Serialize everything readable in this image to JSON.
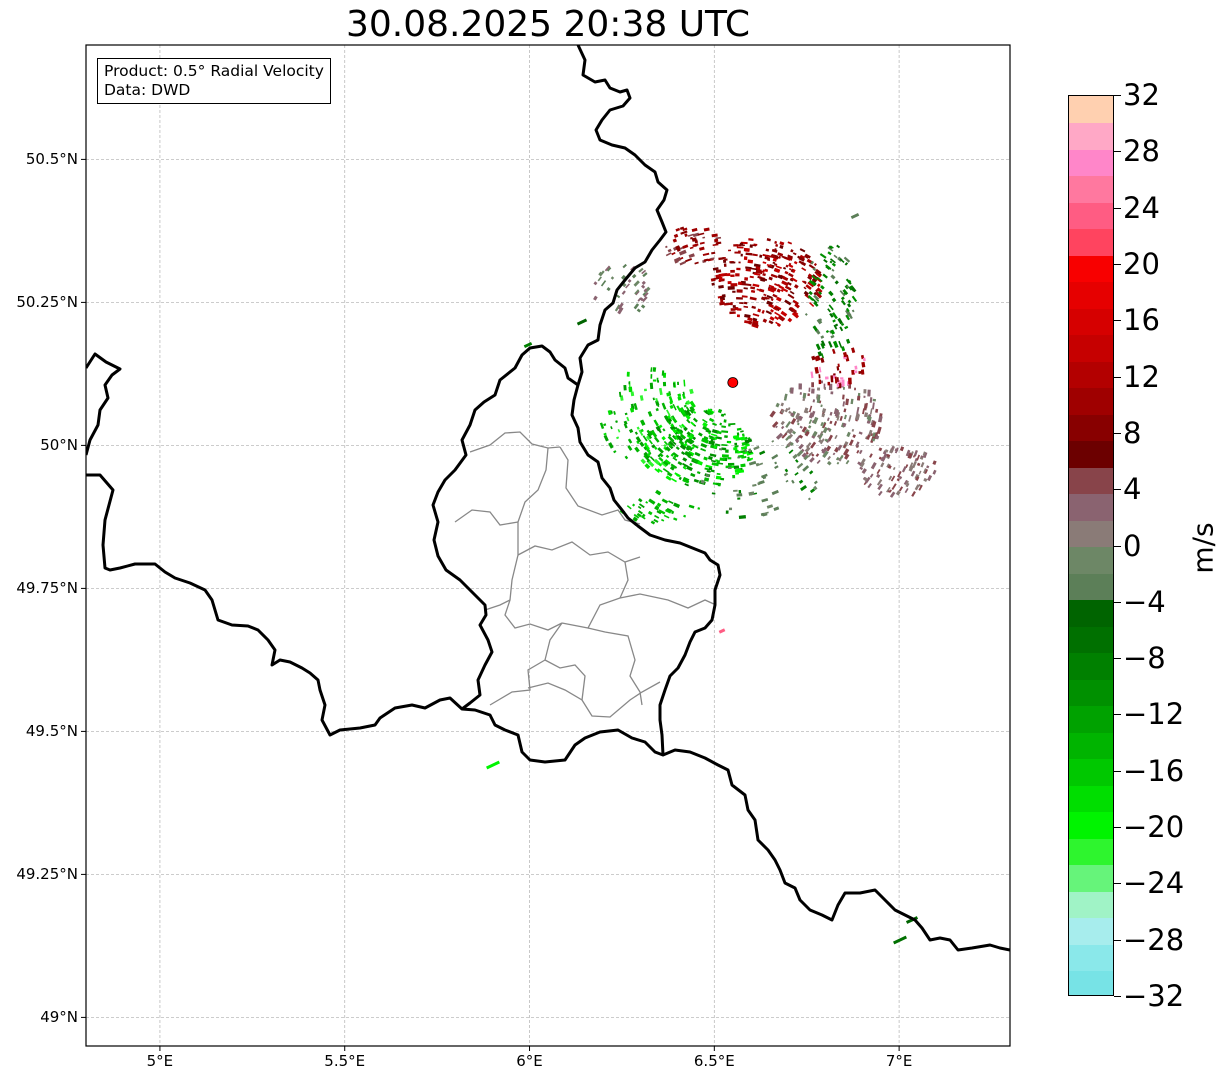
{
  "title": "30.08.2025 20:38 UTC",
  "info": {
    "product": "Product: 0.5° Radial Velocity",
    "source": "Data: DWD"
  },
  "axes": {
    "lat_labels": [
      {
        "lat": 50.5,
        "label": "50.5°N"
      },
      {
        "lat": 50.25,
        "label": "50.25°N"
      },
      {
        "lat": 50.0,
        "label": "50°N"
      },
      {
        "lat": 49.75,
        "label": "49.75°N"
      },
      {
        "lat": 49.5,
        "label": "49.5°N"
      },
      {
        "lat": 49.25,
        "label": "49.25°N"
      },
      {
        "lat": 49.0,
        "label": "49°N"
      }
    ],
    "lon_labels": [
      {
        "lon": 5.0,
        "label": "5°E"
      },
      {
        "lon": 5.5,
        "label": "5.5°E"
      },
      {
        "lon": 6.0,
        "label": "6°E"
      },
      {
        "lon": 6.5,
        "label": "6.5°E"
      },
      {
        "lon": 7.0,
        "label": "7°E"
      }
    ],
    "lon_range": [
      4.8,
      7.3
    ],
    "lat_range": [
      48.95,
      50.7
    ],
    "gridlines": true
  },
  "radar_site": {
    "lon": 6.55,
    "lat": 50.11,
    "marker_color": "#ff0000"
  },
  "colorbar": {
    "unit": "m/s",
    "min": -32,
    "max": 32,
    "tick_labels": [
      "32",
      "28",
      "24",
      "20",
      "16",
      "12",
      "8",
      "4",
      "0",
      "−4",
      "−8",
      "−12",
      "−16",
      "−20",
      "−24",
      "−28",
      "−32"
    ],
    "tick_values": [
      32,
      28,
      24,
      20,
      16,
      12,
      8,
      4,
      0,
      -4,
      -8,
      -12,
      -16,
      -20,
      -24,
      -28,
      -32
    ],
    "colors": [
      "#77e3e6",
      "#8ae8ea",
      "#a7eded",
      "#a0f3c6",
      "#66f47a",
      "#2ef52e",
      "#00f400",
      "#00de00",
      "#00c800",
      "#00b400",
      "#00a200",
      "#009000",
      "#008000",
      "#007000",
      "#006400",
      "#5c7f58",
      "#6d8766",
      "#8a7b77",
      "#8a6370",
      "#88444a",
      "#6c0000",
      "#880000",
      "#9f0000",
      "#b30000",
      "#c60000",
      "#d60000",
      "#e60000",
      "#f80000",
      "#ff445f",
      "#ff5c83",
      "#ff789f",
      "#ff86c9",
      "#ffa8c6",
      "#ffd0b0"
    ]
  }
}
